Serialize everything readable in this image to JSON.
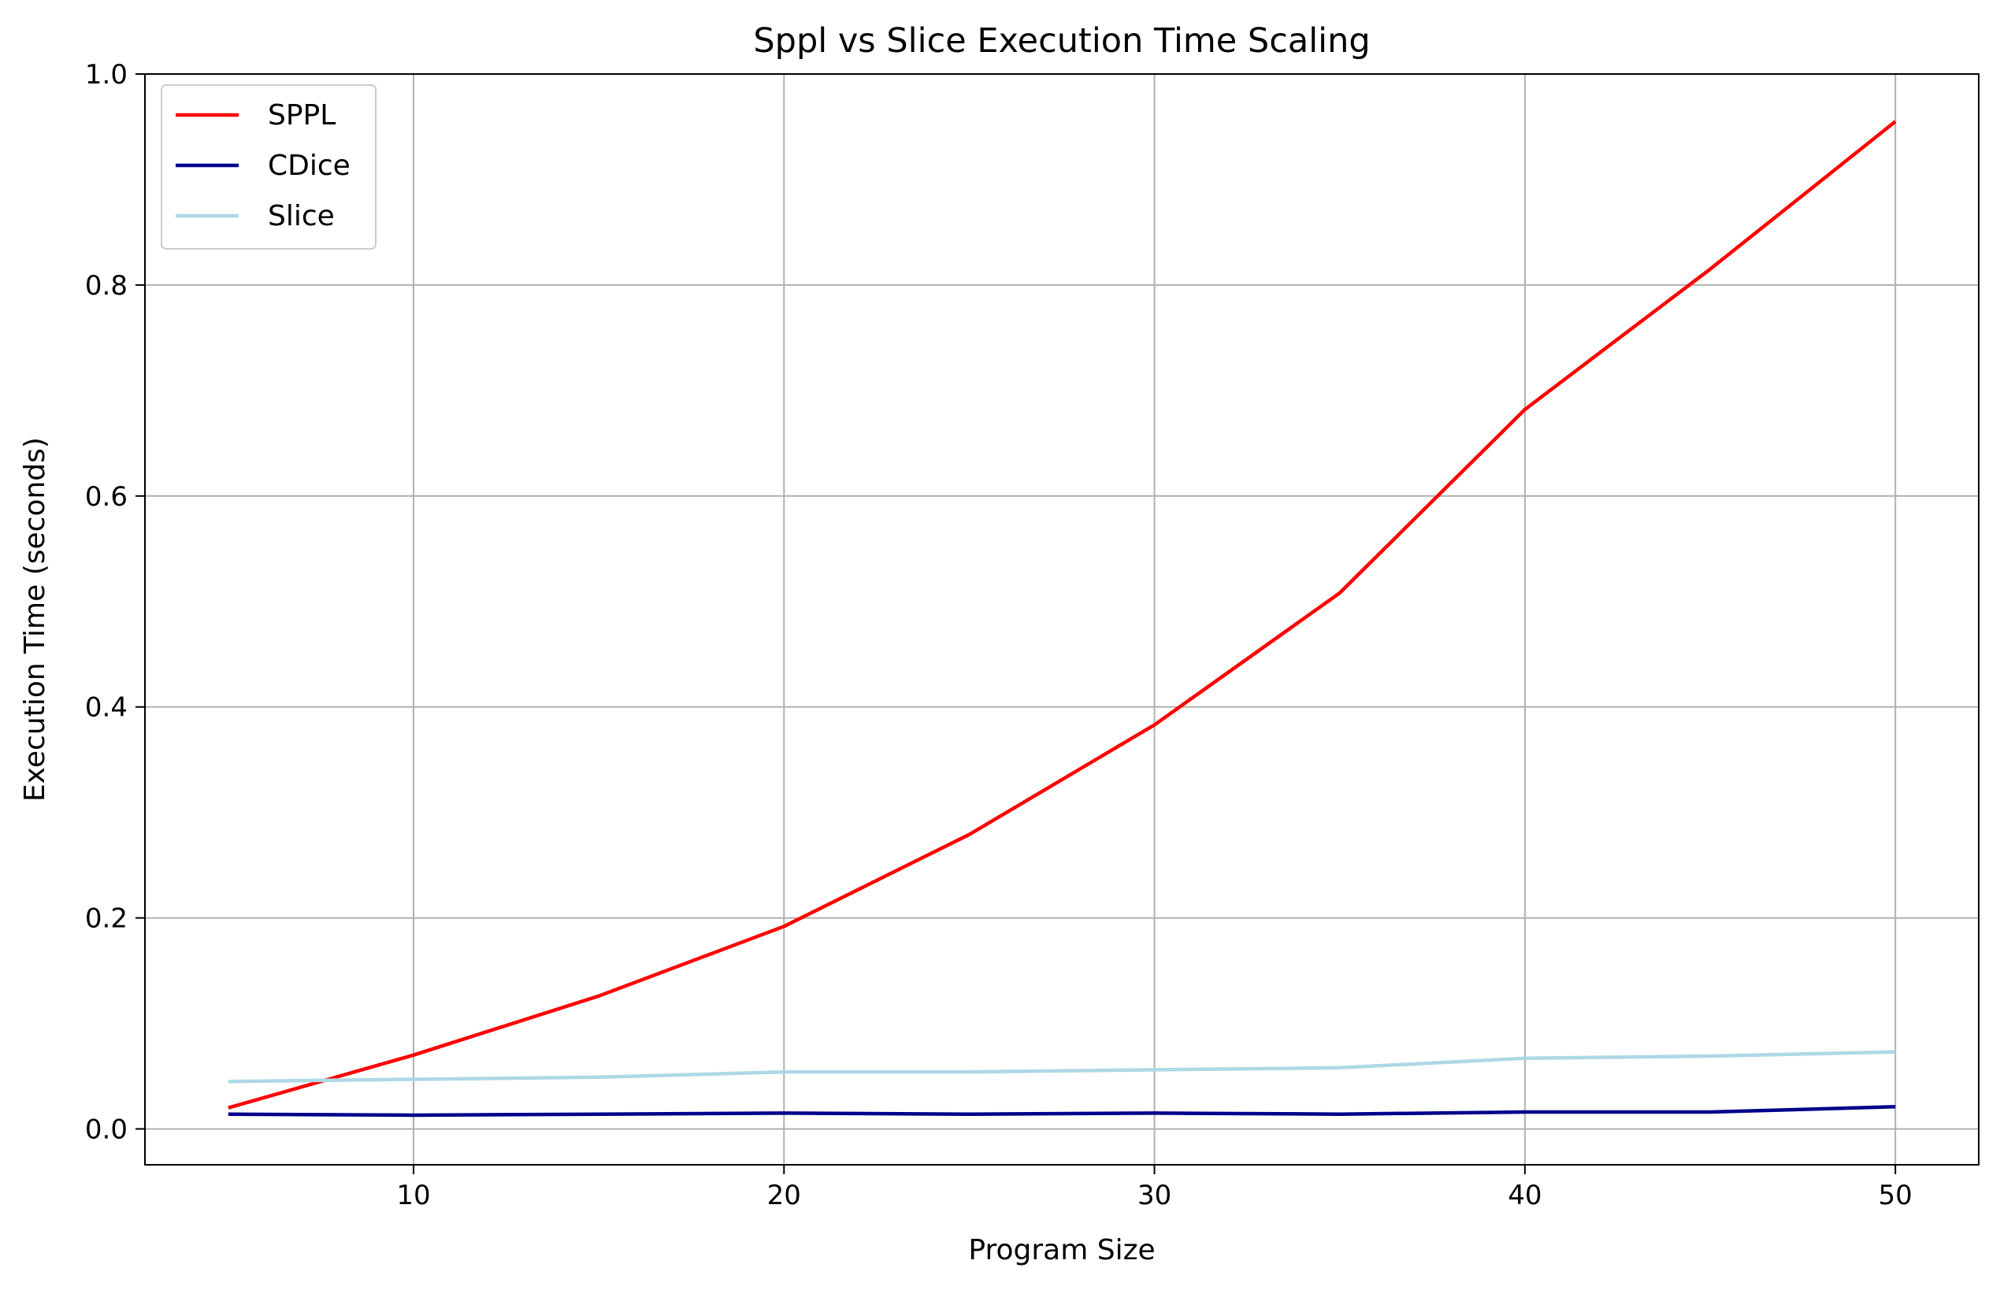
{
  "chart_data": {
    "type": "line",
    "title": "Sppl vs Slice Execution Time Scaling",
    "xlabel": "Program Size",
    "ylabel": "Execution Time (seconds)",
    "x": [
      5,
      10,
      15,
      20,
      25,
      30,
      35,
      40,
      45,
      50
    ],
    "xlim": [
      2.75,
      52.25
    ],
    "ylim": [
      -0.034,
      1.0
    ],
    "xticks": [
      10,
      20,
      30,
      40,
      50
    ],
    "yticks": [
      0.0,
      0.2,
      0.4,
      0.6,
      0.8,
      1.0
    ],
    "xtick_labels": [
      "10",
      "20",
      "30",
      "40",
      "50"
    ],
    "ytick_labels": [
      "0.0",
      "0.2",
      "0.4",
      "0.6",
      "0.8",
      "1.0"
    ],
    "grid": true,
    "legend_position": "top-left",
    "series": [
      {
        "name": "SPPL",
        "color": "#ff0000",
        "values": [
          0.02,
          0.07,
          0.126,
          0.192,
          0.279,
          0.383,
          0.508,
          0.682,
          0.815,
          0.955
        ]
      },
      {
        "name": "CDice",
        "color": "#00008b",
        "values": [
          0.014,
          0.013,
          0.014,
          0.015,
          0.014,
          0.015,
          0.014,
          0.016,
          0.016,
          0.021
        ]
      },
      {
        "name": "Slice",
        "color": "#add8e6",
        "values": [
          0.045,
          0.047,
          0.049,
          0.054,
          0.054,
          0.056,
          0.058,
          0.067,
          0.069,
          0.073
        ]
      }
    ]
  }
}
